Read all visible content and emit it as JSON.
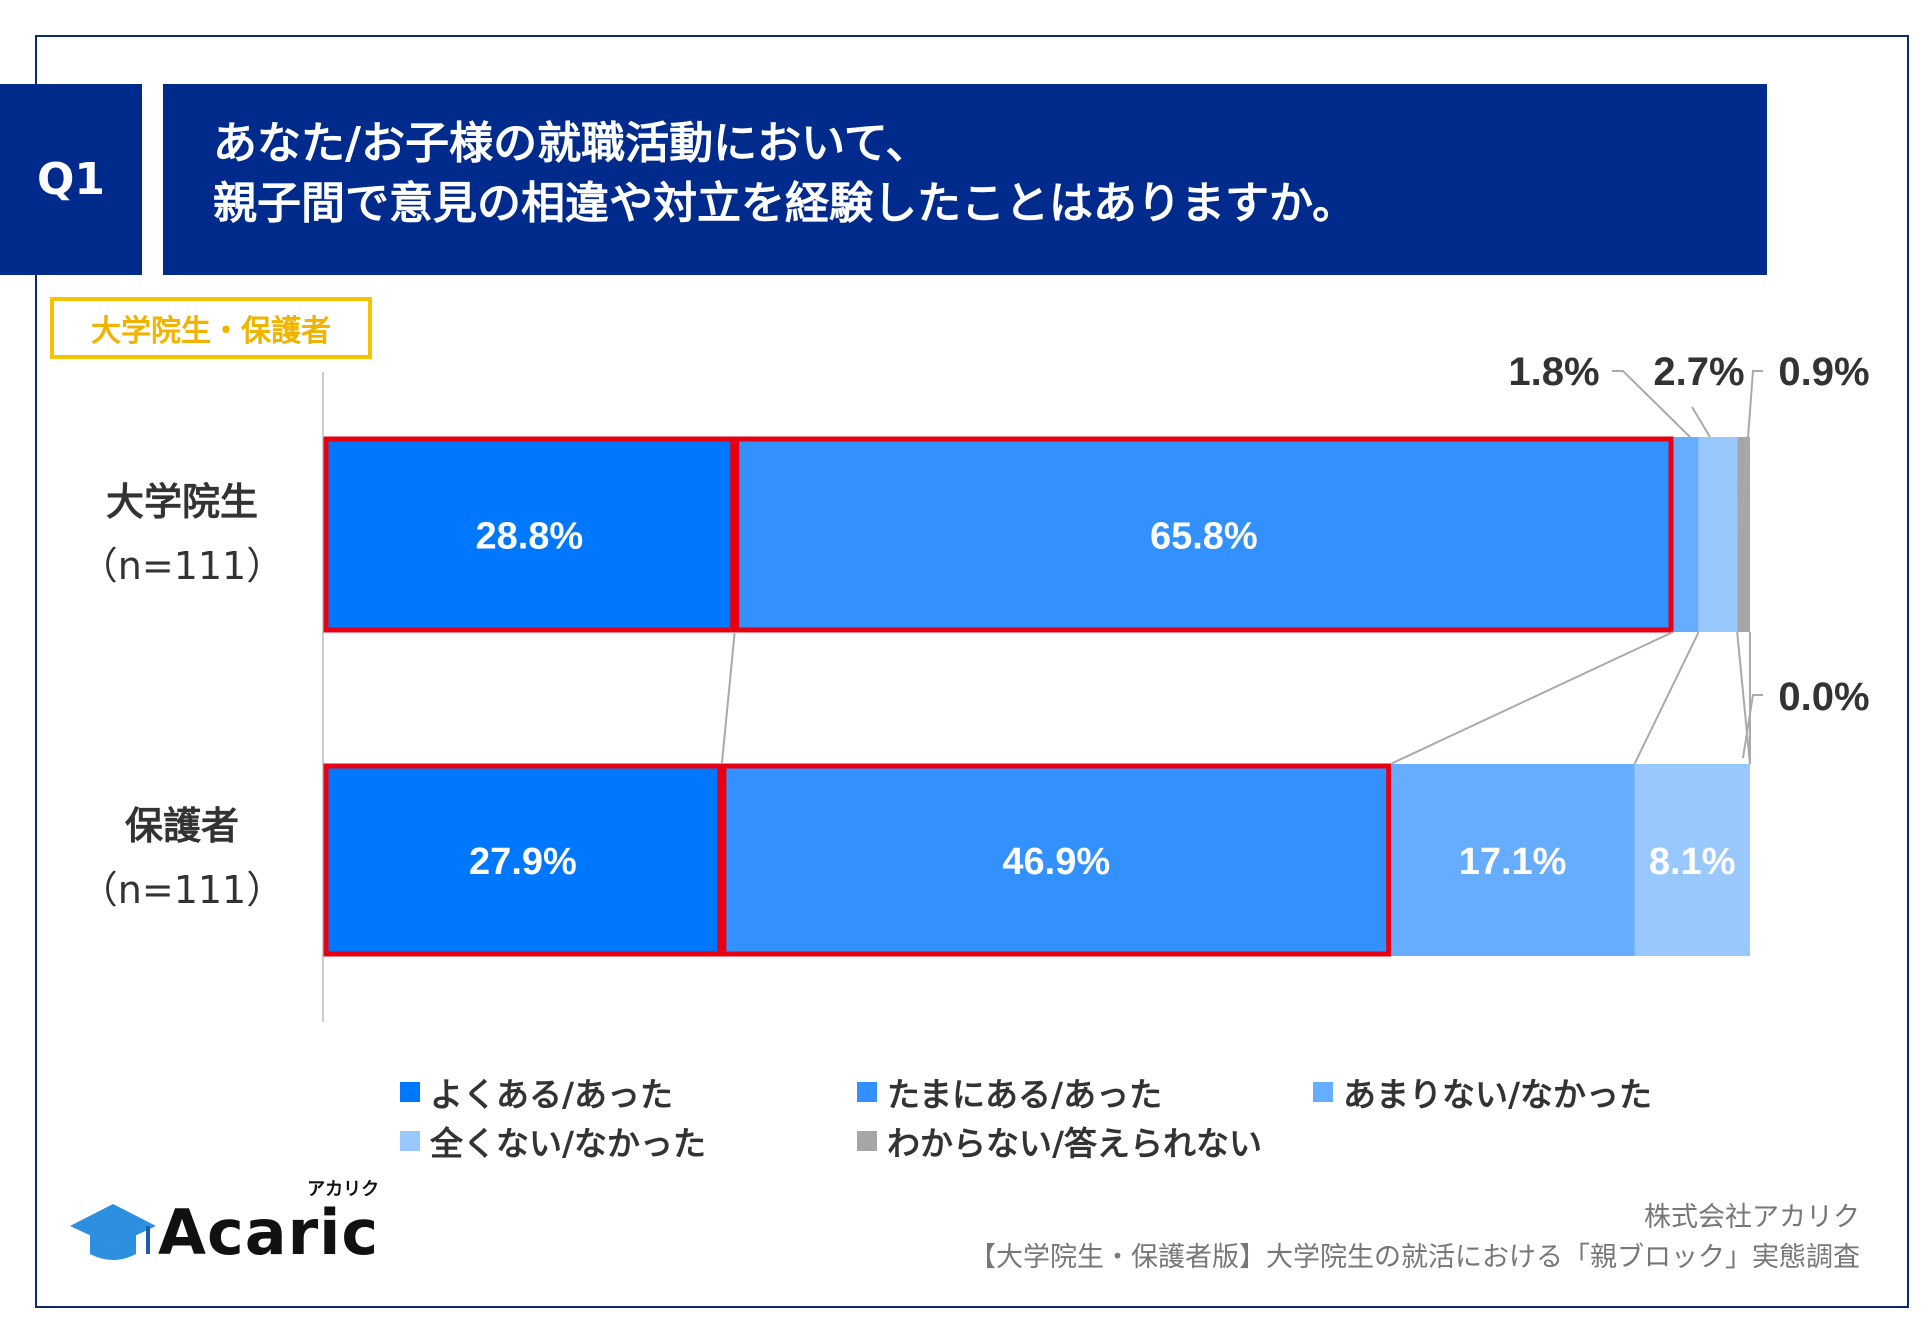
{
  "header": {
    "q_label": "Q1",
    "title_line1": "あなた/お子様の就職活動において、",
    "title_line2": "親子間で意見の相違や対立を経験したことはありますか。"
  },
  "tag": "大学院生・保護者",
  "chart_data": {
    "type": "bar",
    "orientation": "horizontal",
    "stacked": true,
    "categories": [
      {
        "name": "大学院生",
        "n": "（n=111）"
      },
      {
        "name": "保護者",
        "n": "（n=111）"
      }
    ],
    "series": [
      {
        "name": "よくある/あった",
        "color": "#0077ff",
        "values": [
          28.8,
          27.9
        ],
        "labels": [
          "28.8%",
          "27.9%"
        ]
      },
      {
        "name": "たまにある/あった",
        "color": "#3391ff",
        "values": [
          65.8,
          46.9
        ],
        "labels": [
          "65.8%",
          "46.9%"
        ]
      },
      {
        "name": "あまりない/なかった",
        "color": "#66adff",
        "values": [
          1.8,
          17.1
        ],
        "labels": [
          "1.8%",
          "17.1%"
        ]
      },
      {
        "name": "全くない/なかった",
        "color": "#99c8ff",
        "values": [
          2.7,
          8.1
        ],
        "labels": [
          "2.7%",
          "8.1%"
        ]
      },
      {
        "name": "わからない/答えられない",
        "color": "#a6a6a6",
        "values": [
          0.9,
          0.0
        ],
        "labels": [
          "0.9%",
          "0.0%"
        ]
      }
    ],
    "highlight_color": "#e60012",
    "highlighted_series": [
      0,
      1
    ],
    "xlim": [
      0,
      100
    ]
  },
  "footer": {
    "company": "株式会社アカリク",
    "survey": "【大学院生・保護者版】大学院生の就活における「親ブロック」実態調査",
    "logo_text": "Acaric",
    "logo_kana": "アカリク"
  }
}
